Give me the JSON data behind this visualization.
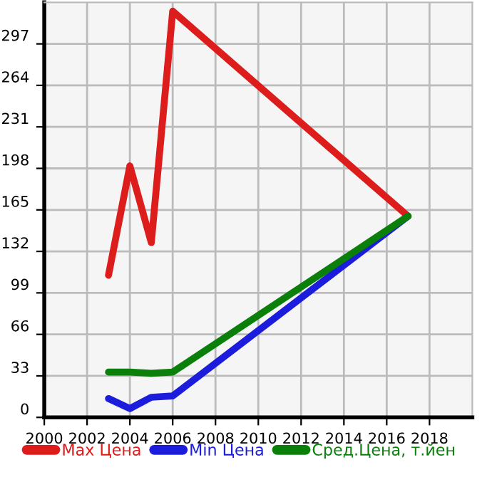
{
  "chart_data": {
    "type": "line",
    "x": [
      2003,
      2004,
      2005,
      2006,
      2017
    ],
    "series": [
      {
        "name": "Max Цена",
        "color": "#dd1c1c",
        "values": [
          113,
          200,
          139,
          323,
          160
        ]
      },
      {
        "name": "Min Цена",
        "color": "#1c1cdd",
        "values": [
          15,
          7,
          16,
          17,
          160
        ]
      },
      {
        "name": "Сред.Цена, т.йен",
        "color": "#0a800a",
        "values": [
          36,
          36,
          35,
          36,
          160
        ]
      }
    ],
    "xlim": [
      2000,
      2020
    ],
    "xticks": [
      2000,
      2002,
      2004,
      2006,
      2008,
      2010,
      2012,
      2014,
      2016,
      2018
    ],
    "ylim": [
      0,
      330
    ],
    "yticks": [
      0,
      33,
      66,
      99,
      132,
      165,
      198,
      231,
      264,
      297
    ],
    "grid": true,
    "legend": "bottom",
    "marker": "none",
    "line_style": "solid"
  }
}
